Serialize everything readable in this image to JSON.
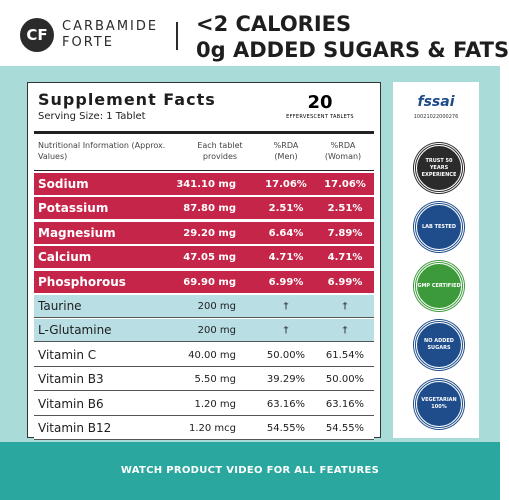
{
  "header": {
    "brand": [
      "CARBAMIDE",
      "FORTE"
    ],
    "headline": [
      "<2 CALORIES",
      "0g ADDED SUGARS & FATS"
    ]
  },
  "facts": {
    "title": "Supplement Facts",
    "serving": "Serving Size: 1 Tablet",
    "count": "20",
    "count_label": "EFFERVESCENT TABLETS",
    "columns": [
      "Nutritional Information (Approx. Values)",
      "Each tablet provides",
      "%RDA (Men)",
      "%RDA (Woman)"
    ],
    "rows": [
      [
        "Sodium",
        "341.10 mg",
        "17.06%",
        "17.06%"
      ],
      [
        "Potassium",
        "87.80 mg",
        "2.51%",
        "2.51%"
      ],
      [
        "Magnesium",
        "29.20 mg",
        "6.64%",
        "7.89%"
      ],
      [
        "Calcium",
        "47.05 mg",
        "4.71%",
        "4.71%"
      ],
      [
        "Phosphorous",
        "69.90 mg",
        "6.99%",
        "6.99%"
      ],
      [
        "Taurine",
        "200 mg",
        "†",
        "†"
      ],
      [
        "L-Glutamine",
        "200 mg",
        "†",
        "†"
      ],
      [
        "Vitamin C",
        "40.00 mg",
        "50.00%",
        "61.54%"
      ],
      [
        "Vitamin B3",
        "5.50 mg",
        "39.29%",
        "50.00%"
      ],
      [
        "Vitamin B6",
        "1.20 mg",
        "63.16%",
        "63.16%"
      ],
      [
        "Vitamin B12",
        "1.20 mcg",
        "54.55%",
        "54.55%"
      ]
    ]
  },
  "badges": {
    "fssai": "fssai",
    "license": "10021022000276",
    "items": [
      "TRUST 50 YEARS EXPERIENCE",
      "LAB TESTED",
      "GMP CERTIFIED",
      "NO ADDED SUGARS",
      "VEGETARIAN 100%"
    ]
  },
  "footer": "WATCH PRODUCT VIDEO FOR ALL FEATURES"
}
